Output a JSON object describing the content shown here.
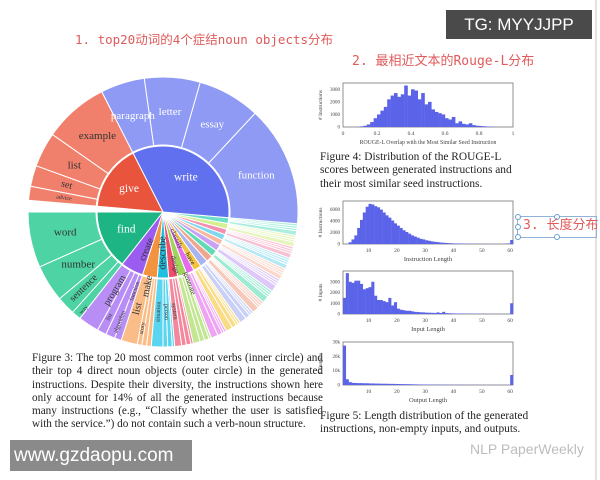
{
  "annotations": {
    "note1": "1. top20动词的4个症结noun objects分布",
    "note2": "2. 最相近文本的Rouge-L分布",
    "note3": "3. 长度分布"
  },
  "watermarks": {
    "tg": "TG: MYYJJPP",
    "site": "www.gzdaopu.com",
    "wechat": "NLP PaperWeekly"
  },
  "figure3": {
    "caption": "Figure 3: The top 20 most common root verbs (inner circle) and their top 4 direct noun objects (outer circle) in the generated instructions. Despite their diversity, the instructions shown here only account for 14% of all the generated instructions because many instructions (e.g., “Classify whether the user is satisfied with the service.”) do not contain such a verb-noun structure."
  },
  "figure4": {
    "caption": "Figure 4: Distribution of the ROUGE-L scores between generated instructions and their most similar seed instructions."
  },
  "figure5": {
    "caption": "Figure 5: Length distribution of the generated instructions, non-empty inputs, and outputs."
  },
  "chart_data": [
    {
      "type": "sunburst",
      "description_units": "share of verb-noun instructions (degrees of circle, approximate)",
      "verbs": [
        {
          "label": "find",
          "share": 52,
          "color": "#1db584",
          "outer_color": "#4dd3a4",
          "nouns": [
            {
              "label": "word",
              "w": 24
            },
            {
              "label": "number",
              "w": 16
            },
            {
              "label": "sentence",
              "w": 8
            },
            {
              "label": "way",
              "w": 4
            }
          ]
        },
        {
          "label": "create",
          "share": 20,
          "color": "#9b5cf0",
          "outer_color": "#b88ef6",
          "nouns": [
            {
              "label": "program",
              "w": 9
            },
            {
              "label": "list",
              "w": 4
            },
            {
              "label": "algorithm",
              "w": 4
            },
            {
              "label": "function",
              "w": 3
            }
          ]
        },
        {
          "label": "make",
          "share": 13,
          "color": "#f2943f",
          "outer_color": "#fbbd88",
          "nouns": [
            {
              "label": "list",
              "w": 7
            },
            {
              "label": "story",
              "w": 2
            },
            {
              "label": "",
              "w": 2
            },
            {
              "label": "",
              "w": 2
            }
          ]
        },
        {
          "label": "describe",
          "share": 10,
          "color": "#1fbfe2",
          "outer_color": "#5ad5ef",
          "nouns": [
            {
              "label": "situation",
              "w": 5
            },
            {
              "label": "person",
              "w": 2
            },
            {
              "label": "",
              "w": 2
            },
            {
              "label": "",
              "w": 1
            }
          ]
        },
        {
          "label": "design",
          "share": 8,
          "color": "#ee4d6c",
          "outer_color": "#f4879d",
          "nouns": [
            {
              "label": "system",
              "w": 3
            },
            {
              "label": "",
              "w": 2
            },
            {
              "label": "",
              "w": 2
            },
            {
              "label": "",
              "w": 1
            }
          ]
        },
        {
          "label": "generate",
          "share": 8,
          "color": "#9fd35c",
          "outer_color": "#c2e692",
          "nouns": [
            {
              "label": "",
              "w": 3
            },
            {
              "label": "",
              "w": 2
            },
            {
              "label": "",
              "w": 2
            },
            {
              "label": "",
              "w": 1
            }
          ]
        },
        {
          "label": "classify",
          "share": 7,
          "color": "#e36bee",
          "outer_color": "#f0a2f5",
          "nouns": [
            {
              "label": "",
              "w": 3
            },
            {
              "label": "",
              "w": 2
            },
            {
              "label": "",
              "w": 1
            },
            {
              "label": "",
              "w": 1
            }
          ]
        },
        {
          "label": "have",
          "share": 7,
          "color": "#f5c23e",
          "outer_color": "#f9dc85",
          "nouns": [
            {
              "label": "",
              "w": 3
            },
            {
              "label": "",
              "w": 2
            },
            {
              "label": "",
              "w": 1
            },
            {
              "label": "",
              "w": 1
            }
          ]
        },
        {
          "label": "",
          "share": 7,
          "color": "#a8b3f0",
          "outer_color": "#c9d0f7",
          "nouns": [
            {
              "label": "",
              "w": 3
            },
            {
              "label": "",
              "w": 2
            },
            {
              "label": "",
              "w": 1
            },
            {
              "label": "",
              "w": 1
            }
          ]
        },
        {
          "label": "",
          "share": 6,
          "color": "#f0a58d",
          "outer_color": "#f7c9ba",
          "nouns": [
            {
              "label": "",
              "w": 3
            },
            {
              "label": "",
              "w": 1
            },
            {
              "label": "",
              "w": 1
            },
            {
              "label": "",
              "w": 1
            }
          ]
        },
        {
          "label": "",
          "share": 6,
          "color": "#5fdcb6",
          "outer_color": "#9eebd3",
          "nouns": [
            {
              "label": "",
              "w": 3
            },
            {
              "label": "",
              "w": 1
            },
            {
              "label": "",
              "w": 1
            },
            {
              "label": "",
              "w": 1
            }
          ]
        },
        {
          "label": "",
          "share": 6,
          "color": "#c6a3f5",
          "outer_color": "#ddc8f9",
          "nouns": [
            {
              "label": "",
              "w": 3
            },
            {
              "label": "",
              "w": 1
            },
            {
              "label": "",
              "w": 1
            },
            {
              "label": "",
              "w": 1
            }
          ]
        },
        {
          "label": "",
          "share": 5,
          "color": "#f7b9a0",
          "outer_color": "#fbd8ca",
          "nouns": [
            {
              "label": "",
              "w": 2
            },
            {
              "label": "",
              "w": 1
            },
            {
              "label": "",
              "w": 1
            },
            {
              "label": "",
              "w": 1
            }
          ]
        },
        {
          "label": "",
          "share": 5,
          "color": "#7ed8ee",
          "outer_color": "#b3e8f5",
          "nouns": [
            {
              "label": "",
              "w": 2
            },
            {
              "label": "",
              "w": 1
            },
            {
              "label": "",
              "w": 1
            },
            {
              "label": "",
              "w": 1
            }
          ]
        },
        {
          "label": "",
          "share": 5,
          "color": "#f58fb0",
          "outer_color": "#f9bfd2",
          "nouns": [
            {
              "label": "",
              "w": 2
            },
            {
              "label": "",
              "w": 1
            },
            {
              "label": "",
              "w": 1
            },
            {
              "label": "",
              "w": 1
            }
          ]
        },
        {
          "label": "",
          "share": 5,
          "color": "#d5ee8e",
          "outer_color": "#e6f5bd",
          "nouns": [
            {
              "label": "",
              "w": 2
            },
            {
              "label": "",
              "w": 1
            },
            {
              "label": "",
              "w": 1
            },
            {
              "label": "",
              "w": 1
            }
          ]
        },
        {
          "label": "",
          "share": 5,
          "color": "#6be0c7",
          "outer_color": "#a9eedf",
          "nouns": [
            {
              "label": "",
              "w": 2
            },
            {
              "label": "",
              "w": 1
            },
            {
              "label": "",
              "w": 1
            },
            {
              "label": "",
              "w": 1
            }
          ]
        },
        {
          "label": "write",
          "share": 122,
          "color": "#6170ee",
          "outer_color": "#8e9af4",
          "nouns": [
            {
              "label": "function",
              "w": 52
            },
            {
              "label": "essay",
              "w": 27
            },
            {
              "label": "letter",
              "w": 24
            },
            {
              "label": "paragraph",
              "w": 19
            }
          ]
        },
        {
          "label": "give",
          "share": 58,
          "color": "#e8553c",
          "outer_color": "#f0806c",
          "nouns": [
            {
              "label": "example",
              "w": 28
            },
            {
              "label": "list",
              "w": 15
            },
            {
              "label": "set",
              "w": 9
            },
            {
              "label": "advice",
              "w": 6
            }
          ]
        }
      ]
    },
    {
      "type": "bar",
      "xlabel": "ROUGE-L Overlap with the Most Similar Seed Instruction",
      "ylabel": "# Instructions",
      "xlim": [
        0,
        1
      ],
      "ylim": [
        0,
        3500
      ],
      "xticks": [
        "0",
        "0.2",
        "0.4",
        "0.6",
        "0.8",
        "1"
      ],
      "yticks": [
        "0",
        "1000",
        "2000",
        "3000"
      ],
      "bin_start": 0,
      "bin_width": 0.02,
      "values": [
        0,
        0,
        0,
        0,
        20,
        50,
        100,
        200,
        400,
        700,
        1000,
        1300,
        1600,
        2200,
        2500,
        2700,
        2400,
        2600,
        3300,
        2500,
        3000,
        2900,
        2200,
        2700,
        1800,
        2000,
        1400,
        1200,
        1100,
        1000,
        700,
        600,
        800,
        300,
        450,
        250,
        200,
        300,
        150,
        100,
        80,
        60,
        40,
        30,
        20,
        10,
        5,
        0,
        0,
        0
      ]
    },
    {
      "type": "bar",
      "xlabel": "Instruction Length",
      "ylabel": "# Instructions",
      "xlim": [
        1,
        61
      ],
      "ylim": [
        0,
        7500
      ],
      "xticks": [
        "10",
        "20",
        "30",
        "40",
        "50",
        "60"
      ],
      "yticks": [
        "0",
        "2000",
        "4000",
        "6000"
      ],
      "bin_start": 1,
      "bin_width": 1,
      "values": [
        0,
        50,
        300,
        800,
        1500,
        2800,
        4200,
        5500,
        6500,
        7000,
        6900,
        6600,
        6400,
        6000,
        5500,
        5000,
        4600,
        4100,
        3600,
        3200,
        2800,
        2400,
        2100,
        1800,
        1500,
        1300,
        1100,
        900,
        800,
        650,
        550,
        450,
        380,
        320,
        260,
        220,
        180,
        150,
        120,
        100,
        90,
        80,
        70,
        60,
        50,
        40,
        35,
        30,
        25,
        20,
        18,
        15,
        12,
        10,
        10,
        8,
        8,
        60,
        100,
        700
      ]
    },
    {
      "type": "bar",
      "xlabel": "Input Length",
      "ylabel": "# Inputs",
      "xlim": [
        1,
        61
      ],
      "ylim": [
        0,
        4000
      ],
      "xticks": [
        "10",
        "20",
        "30",
        "40",
        "50",
        "60"
      ],
      "yticks": [
        "0",
        "1000",
        "2000",
        "3000"
      ],
      "bin_start": 1,
      "bin_width": 1,
      "values": [
        1500,
        3800,
        3000,
        2900,
        3100,
        3100,
        2800,
        2300,
        2400,
        2500,
        3000,
        1700,
        1300,
        1300,
        1200,
        1100,
        1500,
        800,
        1100,
        500,
        400,
        350,
        300,
        300,
        250,
        200,
        180,
        160,
        150,
        130,
        120,
        110,
        100,
        150,
        90,
        200,
        80,
        70,
        60,
        50,
        45,
        40,
        35,
        30,
        28,
        25,
        22,
        20,
        18,
        16,
        15,
        14,
        13,
        12,
        11,
        10,
        10,
        10,
        10,
        1000
      ]
    },
    {
      "type": "bar",
      "xlabel": "Output Length",
      "ylabel": "# Outputs",
      "xlim": [
        1,
        61
      ],
      "ylim": [
        0,
        30000
      ],
      "xticks": [
        "10",
        "20",
        "30",
        "40",
        "50",
        "60"
      ],
      "yticks": [
        "0",
        "10k",
        "20k",
        "30k"
      ],
      "bin_start": 1,
      "bin_width": 1,
      "values": [
        27500,
        4000,
        2000,
        1500,
        1400,
        1300,
        1300,
        1200,
        1200,
        1100,
        1100,
        1000,
        1000,
        900,
        900,
        850,
        800,
        800,
        750,
        700,
        650,
        600,
        600,
        550,
        500,
        450,
        400,
        380,
        350,
        330,
        300,
        280,
        260,
        240,
        220,
        200,
        190,
        180,
        170,
        160,
        150,
        140,
        130,
        120,
        110,
        100,
        95,
        90,
        85,
        80,
        75,
        70,
        65,
        60,
        55,
        50,
        50,
        50,
        50,
        7000
      ]
    }
  ]
}
